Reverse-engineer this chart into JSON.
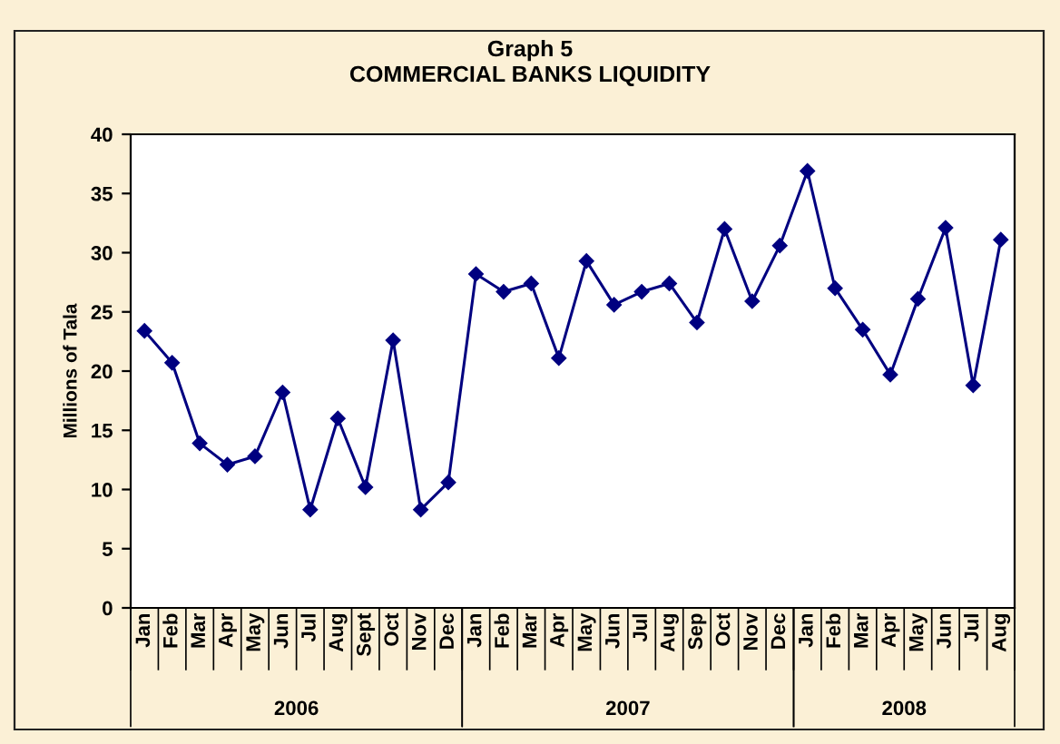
{
  "chart_data": {
    "type": "line",
    "title": "Graph 5",
    "subtitle": "COMMERCIAL BANKS LIQUIDITY",
    "ylabel": "Millions of Tala",
    "categories": [
      "Jan",
      "Feb",
      "Mar",
      "Apr",
      "May",
      "Jun",
      "Jul",
      "Aug",
      "Sept",
      "Oct",
      "Nov",
      "Dec",
      "Jan",
      "Feb",
      "Mar",
      "Apr",
      "May",
      "Jun",
      "Jul",
      "Aug",
      "Sep",
      "Oct",
      "Nov",
      "Dec",
      "Jan",
      "Feb",
      "Mar",
      "Apr",
      "May",
      "Jun",
      "Jul",
      "Aug"
    ],
    "series": [
      {
        "color": "#000080",
        "values": [
          23.4,
          20.7,
          13.9,
          12.1,
          12.8,
          18.2,
          8.3,
          16.0,
          10.2,
          22.6,
          8.3,
          10.6,
          28.2,
          26.7,
          27.4,
          21.1,
          29.3,
          25.6,
          26.7,
          27.4,
          24.1,
          32.0,
          25.9,
          30.6,
          36.9,
          27.0,
          23.5,
          19.7,
          26.1,
          32.1,
          18.8,
          31.1
        ]
      }
    ],
    "annotations": [
      "2006",
      "2007",
      "2008"
    ],
    "ylim": [
      0,
      40
    ],
    "yticks": [
      0,
      5,
      10,
      15,
      20,
      25,
      30,
      35,
      40
    ],
    "grid": false,
    "legend": false,
    "marker": "diamond",
    "line_style": "solid"
  }
}
